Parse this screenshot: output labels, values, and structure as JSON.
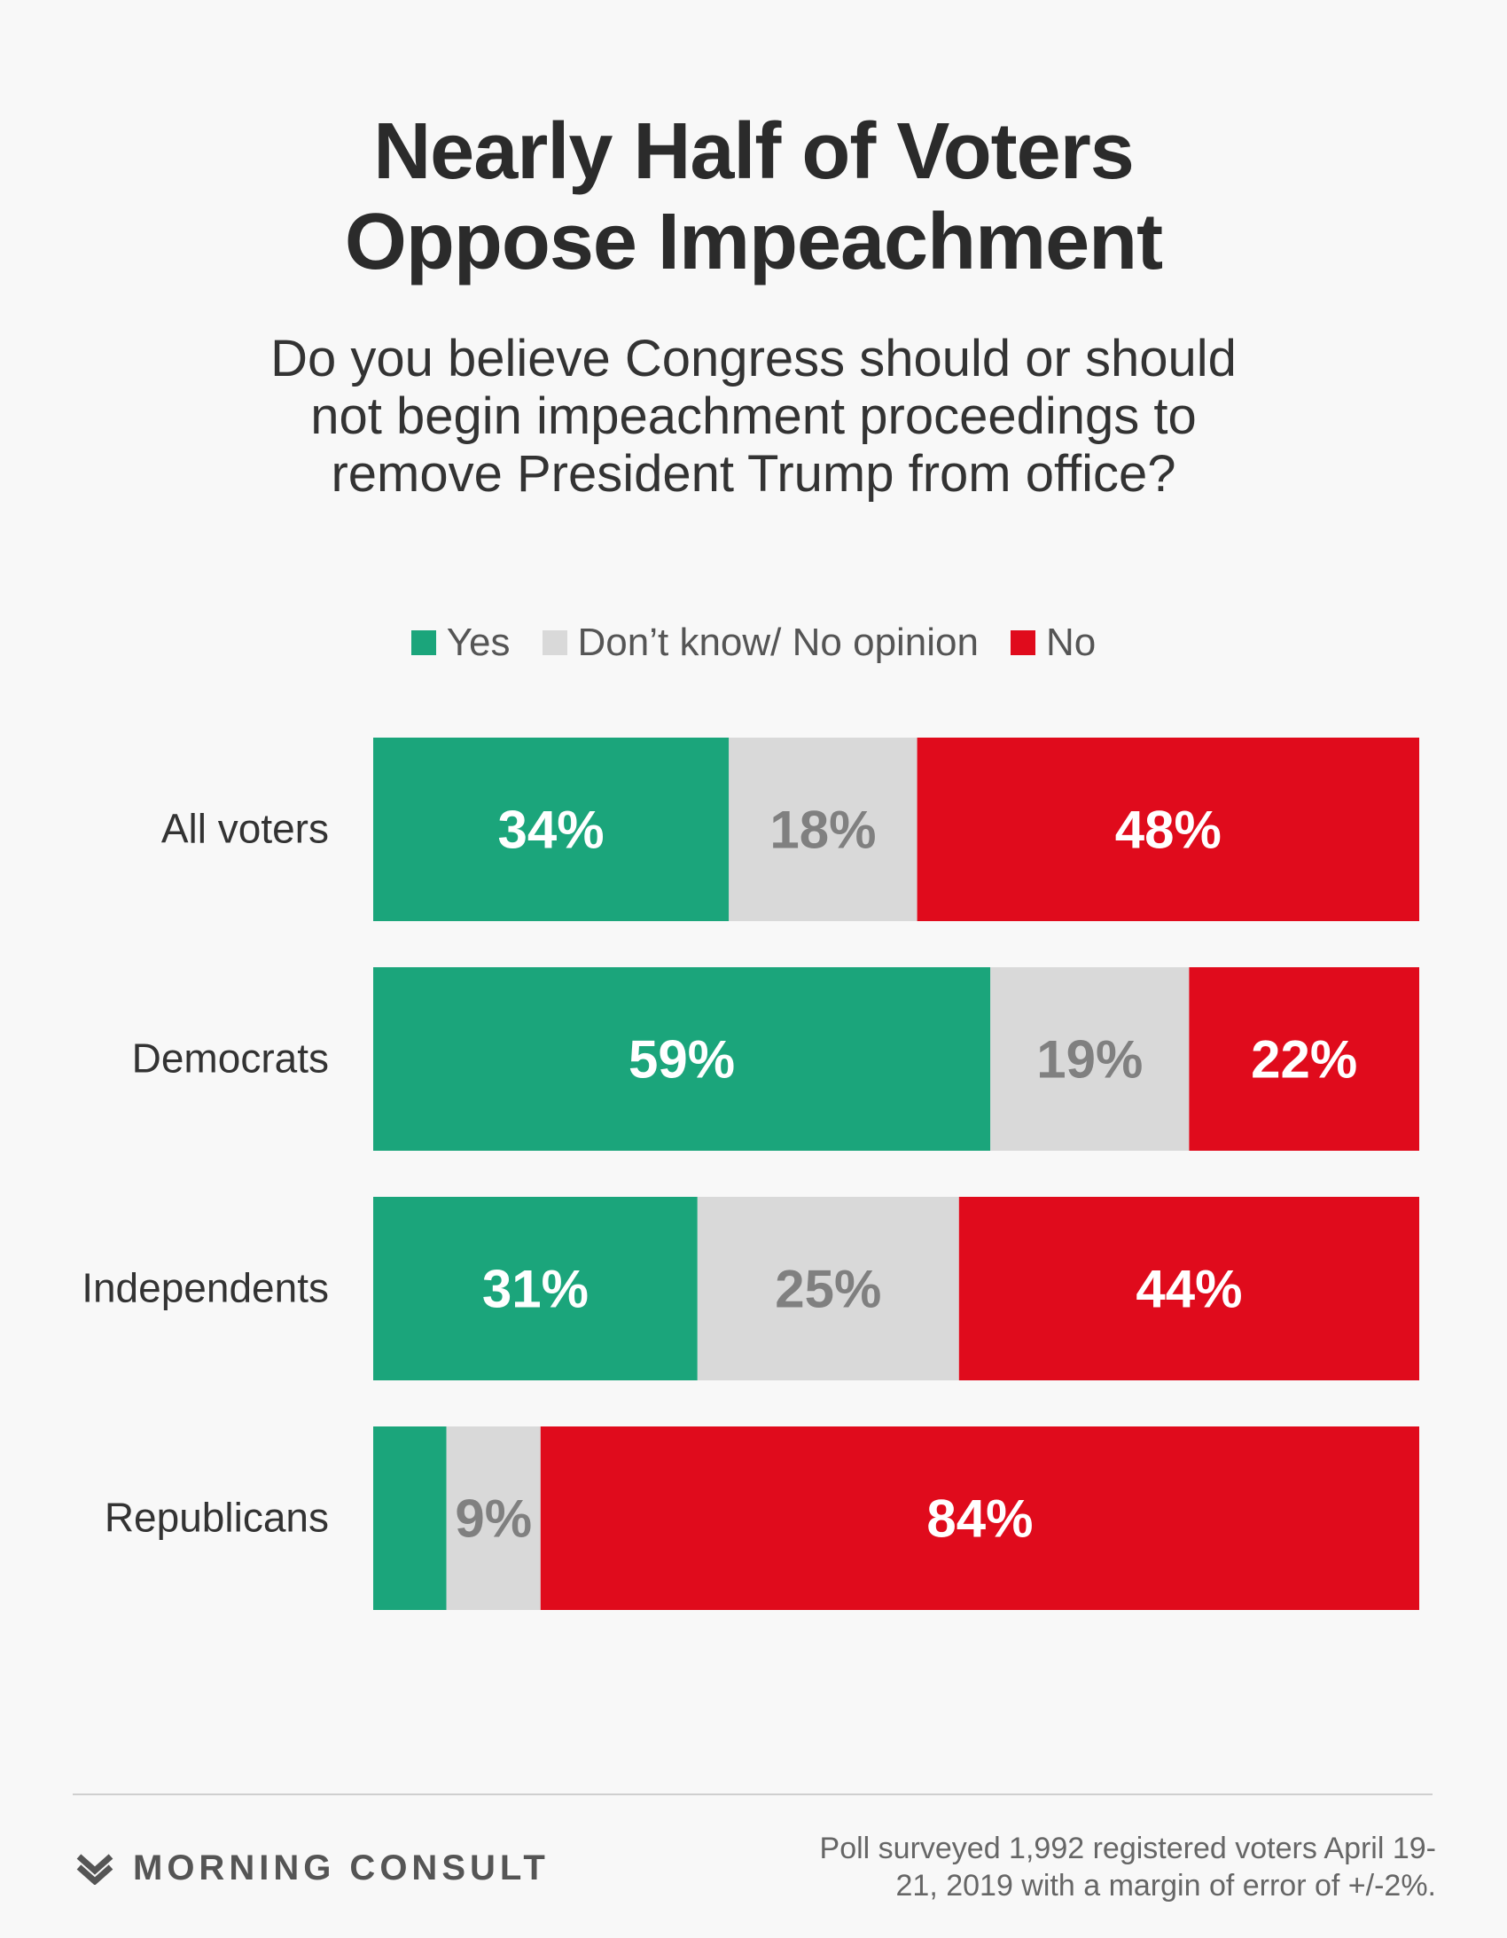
{
  "title_lines": [
    "Nearly Half of Voters",
    "Oppose Impeachment"
  ],
  "question_lines": [
    "Do you believe Congress should or should",
    "not begin impeachment proceedings to",
    "remove President Trump from office?"
  ],
  "colors": {
    "yes": "#1ba57b",
    "dont_know": "#d9d9d9",
    "no": "#e00b1c",
    "dk_text": "#808080",
    "label_text": "#ffffff"
  },
  "chart_data": {
    "type": "bar",
    "orientation": "horizontal",
    "stacked": true,
    "categories": [
      "All voters",
      "Democrats",
      "Independents",
      "Republicans"
    ],
    "series": [
      {
        "name": "Yes",
        "values": [
          34,
          59,
          31,
          7
        ],
        "labels": [
          "34%",
          "59%",
          "31%",
          ""
        ]
      },
      {
        "name": "Don’t know/ No opinion",
        "values": [
          18,
          19,
          25,
          9
        ],
        "labels": [
          "18%",
          "19%",
          "25%",
          "9%"
        ]
      },
      {
        "name": "No",
        "values": [
          48,
          22,
          44,
          84
        ],
        "labels": [
          "48%",
          "22%",
          "44%",
          "84%"
        ]
      }
    ],
    "xlim": [
      0,
      100
    ],
    "legend": "top"
  },
  "footer": {
    "brand": "MORNING CONSULT",
    "note_lines": [
      "Poll surveyed 1,992 registered voters April 19-",
      "21, 2019 with a margin of error of +/-2%."
    ]
  }
}
